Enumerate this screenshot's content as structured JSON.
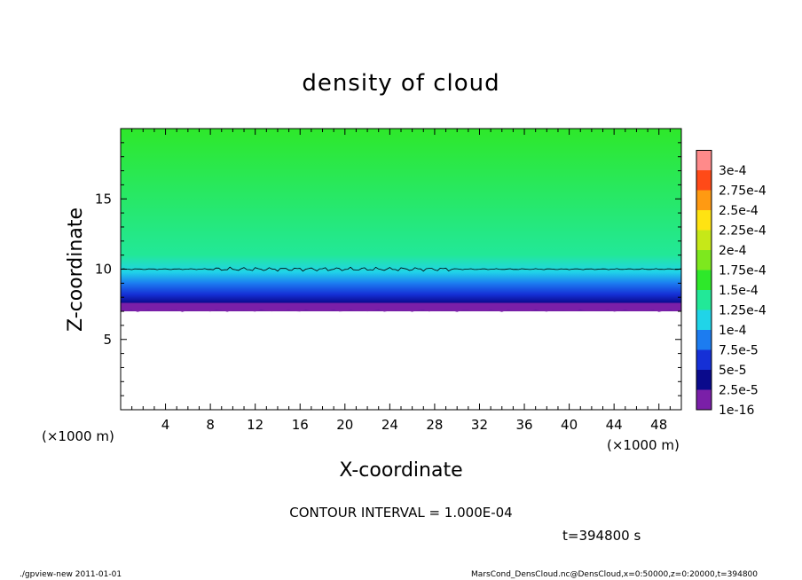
{
  "chart_data": {
    "type": "heatmap",
    "title": "density of cloud",
    "xlabel": "X-coordinate",
    "ylabel": "Z-coordinate",
    "x_unit": "(×1000 m)",
    "y_unit": "(×1000 m)",
    "xlim": [
      0,
      50
    ],
    "ylim": [
      0,
      20
    ],
    "x_ticks": [
      4,
      8,
      12,
      16,
      20,
      24,
      28,
      32,
      36,
      40,
      44,
      48
    ],
    "y_ticks": [
      5,
      10,
      15
    ],
    "legend_levels": [
      {
        "label": "1e-16",
        "color": "#7a1fa8"
      },
      {
        "label": "2.5e-5",
        "color": "#0a0a8c"
      },
      {
        "label": "5e-5",
        "color": "#1530d6"
      },
      {
        "label": "7.5e-5",
        "color": "#1c7cf0"
      },
      {
        "label": "1e-4",
        "color": "#20d4e8"
      },
      {
        "label": "1.25e-4",
        "color": "#22e898"
      },
      {
        "label": "1.5e-4",
        "color": "#2ee82a"
      },
      {
        "label": "1.75e-4",
        "color": "#7de81e"
      },
      {
        "label": "2e-4",
        "color": "#c6e818"
      },
      {
        "label": "2.25e-4",
        "color": "#ffe312"
      },
      {
        "label": "2.5e-4",
        "color": "#ff9a12"
      },
      {
        "label": "2.75e-4",
        "color": "#ff4a18"
      },
      {
        "label": "3e-4",
        "color": "#ff8a8a"
      }
    ],
    "profile": [
      {
        "z": 7.0,
        "level": 0
      },
      {
        "z": 7.6,
        "level": 1
      },
      {
        "z": 8.2,
        "level": 2
      },
      {
        "z": 9.0,
        "level": 3
      },
      {
        "z": 9.8,
        "level": 4
      },
      {
        "z": 11.0,
        "level": 5
      },
      {
        "z": 20.0,
        "level": 6
      }
    ],
    "contour_line_z": 10.0,
    "contour_interval": "CONTOUR INTERVAL = 1.000E-04",
    "time": "t=394800 s"
  },
  "footer": {
    "left": "./gpview-new   2011-01-01",
    "right": "MarsCond_DensCloud.nc@DensCloud,x=0:50000,z=0:20000,t=394800"
  }
}
